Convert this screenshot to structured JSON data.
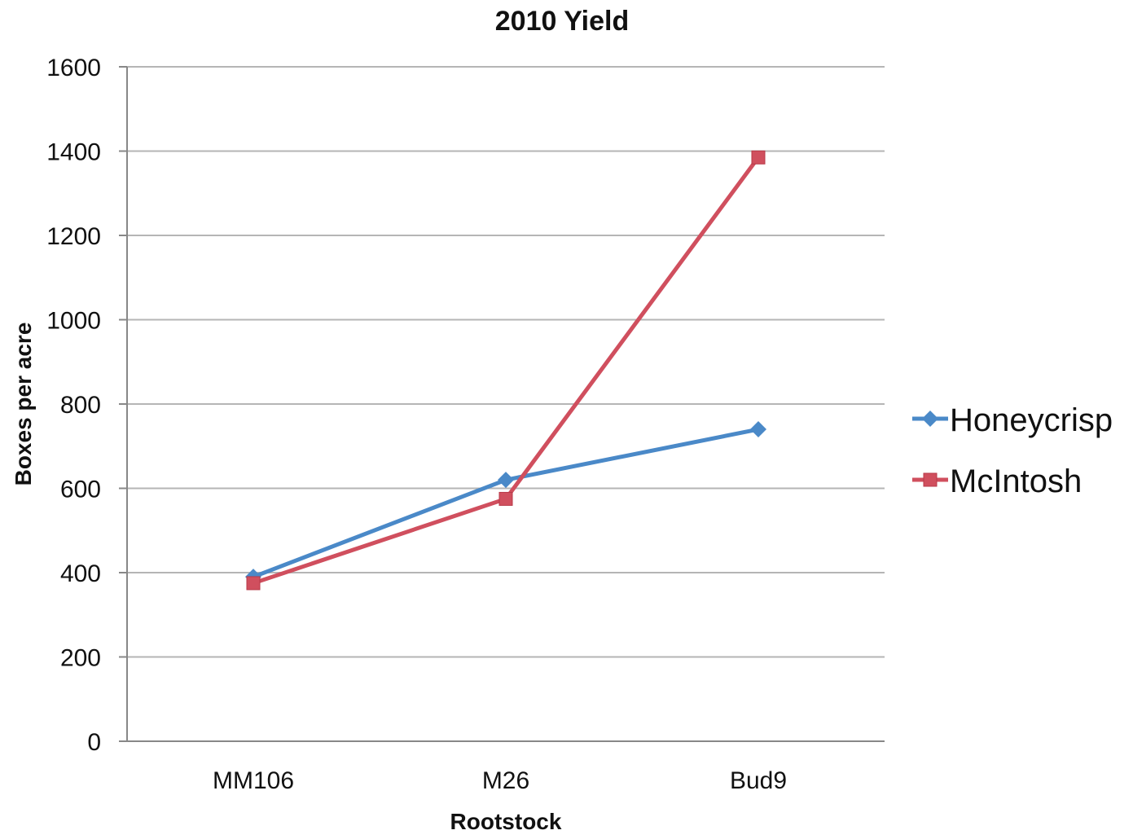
{
  "chart_data": {
    "type": "line",
    "title": "2010 Yield",
    "xlabel": "Rootstock",
    "ylabel": "Boxes per acre",
    "categories": [
      "MM106",
      "M26",
      "Bud9"
    ],
    "ylim": [
      0,
      1600
    ],
    "yticks": [
      0,
      200,
      400,
      600,
      800,
      1000,
      1200,
      1400,
      1600
    ],
    "grid": true,
    "legend_position": "right",
    "series": [
      {
        "name": "Honeycrisp",
        "values": [
          390,
          620,
          740
        ],
        "color": "#4a89c8",
        "marker": "diamond"
      },
      {
        "name": "McIntosh",
        "values": [
          375,
          575,
          1385
        ],
        "color": "#d04f5e",
        "marker": "square"
      }
    ]
  }
}
